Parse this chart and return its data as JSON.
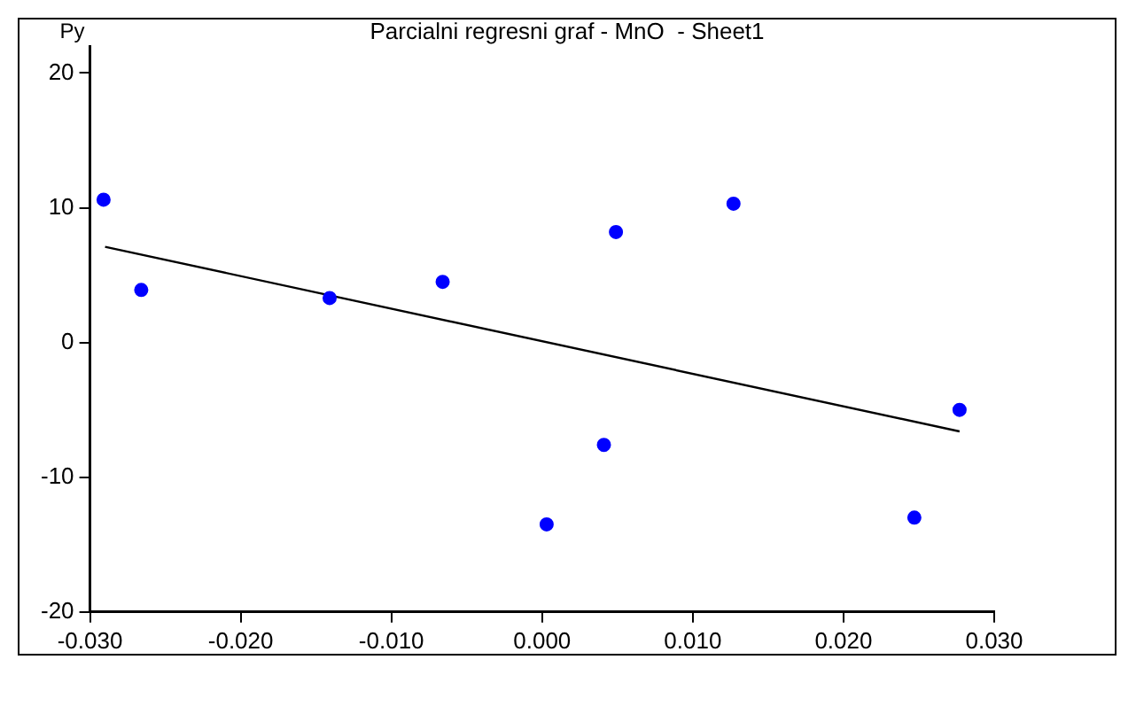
{
  "chart_data": {
    "type": "scatter",
    "title": "Parcialni regresni graf - MnO  - Sheet1",
    "ylabel": "Py",
    "series": [
      {
        "type": "scatter",
        "marker": "circle",
        "color": "#0000ff",
        "x": [
          -0.0291,
          -0.0266,
          -0.0141,
          -0.0066,
          0.0003,
          0.0041,
          0.0049,
          0.0127,
          0.0247,
          0.0277
        ],
        "values": [
          10.6,
          3.9,
          3.3,
          4.5,
          -13.5,
          -7.6,
          8.2,
          10.3,
          -13.0,
          -5.0
        ]
      },
      {
        "type": "line",
        "marker": "none",
        "color": "#000000",
        "x": [
          -0.029,
          0.0277
        ],
        "values": [
          7.1,
          -6.6
        ]
      }
    ],
    "xlim": [
      -0.03,
      0.03
    ],
    "xticks": [
      {
        "value": -0.03,
        "label": "-0.030"
      },
      {
        "value": -0.02,
        "label": "-0.020"
      },
      {
        "value": -0.01,
        "label": "-0.010"
      },
      {
        "value": 0,
        "label": "0.000"
      },
      {
        "value": 0.01,
        "label": "0.010"
      },
      {
        "value": 0.02,
        "label": "0.020"
      },
      {
        "value": 0.03,
        "label": "0.030"
      }
    ],
    "ylim": [
      -20,
      22
    ],
    "yticks": [
      -20,
      -10,
      0,
      10,
      20
    ],
    "grid": false,
    "legend": false
  }
}
